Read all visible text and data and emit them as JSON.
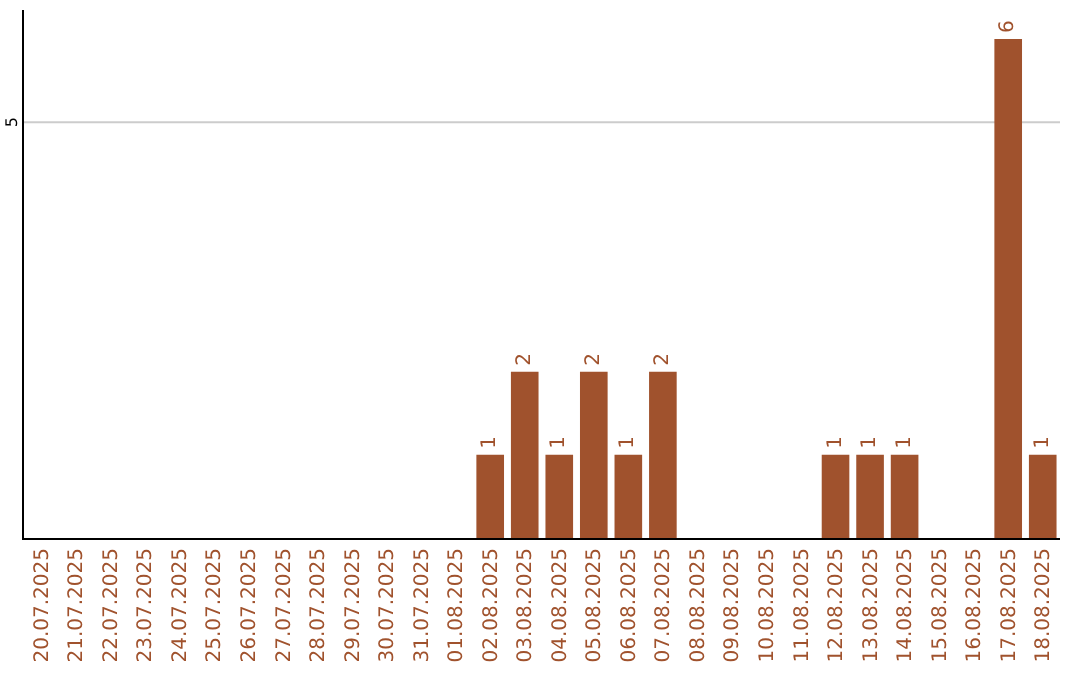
{
  "chart_data": {
    "type": "bar",
    "categories": [
      "20.07.2025",
      "21.07.2025",
      "22.07.2025",
      "23.07.2025",
      "24.07.2025",
      "25.07.2025",
      "26.07.2025",
      "27.07.2025",
      "28.07.2025",
      "29.07.2025",
      "30.07.2025",
      "31.07.2025",
      "01.08.2025",
      "02.08.2025",
      "03.08.2025",
      "04.08.2025",
      "05.08.2025",
      "06.08.2025",
      "07.08.2025",
      "08.08.2025",
      "09.08.2025",
      "10.08.2025",
      "11.08.2025",
      "12.08.2025",
      "13.08.2025",
      "14.08.2025",
      "15.08.2025",
      "16.08.2025",
      "17.08.2025",
      "18.08.2025"
    ],
    "values": [
      null,
      null,
      null,
      null,
      null,
      null,
      null,
      null,
      null,
      null,
      null,
      null,
      null,
      1,
      2,
      1,
      2,
      1,
      2,
      null,
      null,
      null,
      null,
      1,
      1,
      1,
      null,
      null,
      6,
      1
    ],
    "data_labels": true,
    "color": "#a0522d",
    "ylim": [
      0,
      6.35
    ],
    "ref_lines": [
      {
        "axis": "y",
        "value": 5,
        "label": "5",
        "color": "#cccccc"
      }
    ],
    "legend": false
  }
}
